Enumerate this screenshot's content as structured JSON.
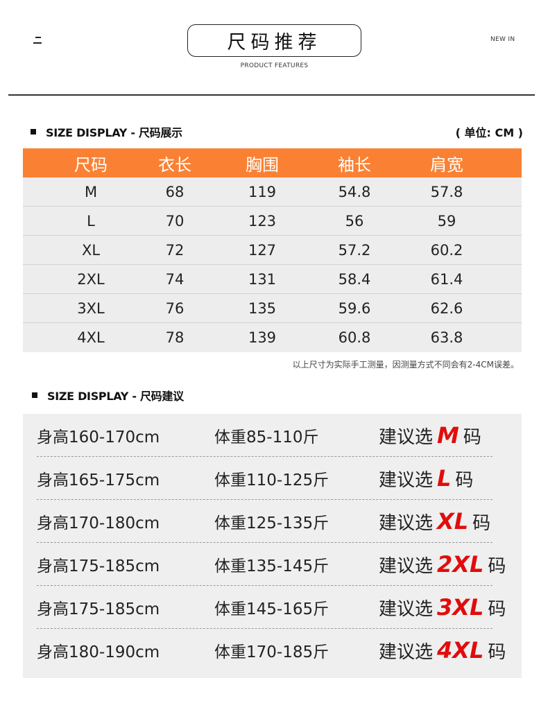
{
  "header": {
    "title": "尺码推荐",
    "subtitle": "PRODUCT FEATURES",
    "new_in": "NEW IN"
  },
  "size_display": {
    "heading": "SIZE DISPLAY - 尺码展示",
    "unit": "( 单位: CM )",
    "columns": [
      "尺码",
      "衣长",
      "胸围",
      "袖长",
      "肩宽"
    ],
    "rows": [
      [
        "M",
        "68",
        "119",
        "54.8",
        "57.8"
      ],
      [
        "L",
        "70",
        "123",
        "56",
        "59"
      ],
      [
        "XL",
        "72",
        "127",
        "57.2",
        "60.2"
      ],
      [
        "2XL",
        "74",
        "131",
        "58.4",
        "61.4"
      ],
      [
        "3XL",
        "76",
        "135",
        "59.6",
        "62.6"
      ],
      [
        "4XL",
        "78",
        "139",
        "60.8",
        "63.8"
      ]
    ],
    "note": "以上尺寸为实际手工测量，因测量方式不同会有2-4CM误差。"
  },
  "size_recommend": {
    "heading": "SIZE DISPLAY - 尺码建议",
    "rows": [
      {
        "height": "身高160-170cm",
        "weight": "体重85-110斤",
        "prefix": "建议选",
        "size": "M",
        "suffix": "码"
      },
      {
        "height": "身高165-175cm",
        "weight": "体重110-125斤",
        "prefix": "建议选",
        "size": "L",
        "suffix": "码"
      },
      {
        "height": "身高170-180cm",
        "weight": "体重125-135斤",
        "prefix": "建议选",
        "size": "XL",
        "suffix": "码"
      },
      {
        "height": "身高175-185cm",
        "weight": "体重135-145斤",
        "prefix": "建议选",
        "size": "2XL",
        "suffix": "码"
      },
      {
        "height": "身高175-185cm",
        "weight": "体重145-165斤",
        "prefix": "建议选",
        "size": "3XL",
        "suffix": "码"
      },
      {
        "height": "身高180-190cm",
        "weight": "体重170-185斤",
        "prefix": "建议选",
        "size": "4XL",
        "suffix": "码"
      }
    ]
  },
  "colors": {
    "accent_orange": "#fa8133",
    "highlight_red": "#e10c0c",
    "row_bg": "#ededed"
  }
}
